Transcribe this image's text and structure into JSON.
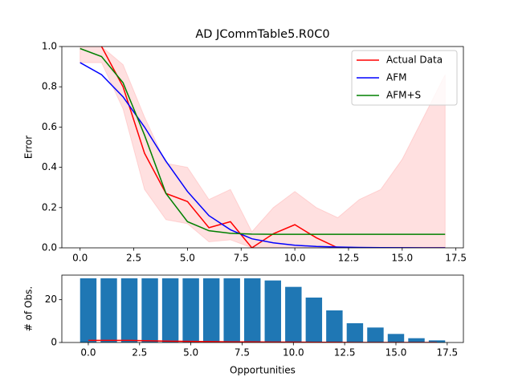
{
  "chart_data": [
    {
      "type": "line",
      "title": "AD JCommTable5.R0C0",
      "ylabel": "Error",
      "x": [
        0,
        1,
        2,
        3,
        4,
        5,
        6,
        7,
        8,
        9,
        10,
        11,
        12,
        13,
        14,
        15,
        16,
        17
      ],
      "series": [
        {
          "name": "Actual Data",
          "color": "#ff0000",
          "values": [
            1.1,
            1.0,
            0.8,
            0.47,
            0.27,
            0.23,
            0.1,
            0.13,
            0.0,
            0.07,
            0.115,
            0.05,
            0.0,
            0.0,
            0.0,
            0.0,
            0.0,
            0.0
          ]
        },
        {
          "name": "AFM",
          "color": "#0000ff",
          "values": [
            0.92,
            0.86,
            0.75,
            0.6,
            0.43,
            0.28,
            0.16,
            0.09,
            0.045,
            0.025,
            0.013,
            0.007,
            0.004,
            0.002,
            0.001,
            0.0005,
            0.0002,
            0.0001
          ]
        },
        {
          "name": "AFM+S",
          "color": "#008000",
          "values": [
            0.99,
            0.95,
            0.82,
            0.56,
            0.27,
            0.13,
            0.085,
            0.072,
            0.068,
            0.067,
            0.067,
            0.067,
            0.067,
            0.067,
            0.067,
            0.067,
            0.067,
            0.067
          ]
        }
      ],
      "band": {
        "color": "#ff0000",
        "upper": [
          1.0,
          1.0,
          0.91,
          0.65,
          0.42,
          0.4,
          0.24,
          0.29,
          0.08,
          0.2,
          0.28,
          0.2,
          0.15,
          0.24,
          0.29,
          0.44,
          0.65,
          0.86
        ],
        "lower": [
          0.92,
          0.92,
          0.69,
          0.29,
          0.14,
          0.12,
          0.03,
          0.04,
          0.0,
          0.0,
          0.0,
          0.0,
          0.0,
          0.0,
          0.0,
          0.0,
          0.0,
          0.0
        ]
      },
      "xlim": [
        -0.85,
        17.85
      ],
      "ylim": [
        0,
        1
      ],
      "xticks": [
        {
          "value": 0,
          "label": "0.0"
        },
        {
          "value": 2.5,
          "label": "2.5"
        },
        {
          "value": 5,
          "label": "5.0"
        },
        {
          "value": 7.5,
          "label": "7.5"
        },
        {
          "value": 10,
          "label": "10.0"
        },
        {
          "value": 12.5,
          "label": "12.5"
        },
        {
          "value": 15,
          "label": "15.0"
        },
        {
          "value": 17.5,
          "label": "17.5"
        }
      ],
      "yticks": [
        {
          "value": 0,
          "label": "0.0"
        },
        {
          "value": 0.2,
          "label": "0.2"
        },
        {
          "value": 0.4,
          "label": "0.4"
        },
        {
          "value": 0.6,
          "label": "0.6"
        },
        {
          "value": 0.8,
          "label": "0.8"
        },
        {
          "value": 1,
          "label": "1.0"
        }
      ],
      "legend": "upper right"
    },
    {
      "type": "bar",
      "xlabel": "Opportunities",
      "ylabel": "# of Obs.",
      "x": [
        0,
        1,
        2,
        3,
        4,
        5,
        6,
        7,
        8,
        9,
        10,
        11,
        12,
        13,
        14,
        15,
        16,
        17
      ],
      "values": [
        30,
        30,
        30,
        30,
        30,
        30,
        30,
        30,
        30,
        29,
        26,
        21,
        15,
        9,
        7,
        4,
        2,
        1
      ],
      "color": "#1f77b4",
      "overlay_line": {
        "color": "#ff0000",
        "values": [
          1,
          1,
          1,
          0.8,
          0.6,
          0.5,
          0.4,
          0.3,
          0.3,
          0.2,
          0.2,
          0.1,
          0.1,
          0,
          0,
          0,
          0,
          0
        ]
      },
      "xlim": [
        -1.29,
        18.29
      ],
      "ylim": [
        0,
        31.5
      ],
      "xticks": [
        {
          "value": 0,
          "label": "0.0"
        },
        {
          "value": 2.5,
          "label": "2.5"
        },
        {
          "value": 5,
          "label": "5.0"
        },
        {
          "value": 7.5,
          "label": "7.5"
        },
        {
          "value": 10,
          "label": "10.0"
        },
        {
          "value": 12.5,
          "label": "12.5"
        },
        {
          "value": 15,
          "label": "15.0"
        },
        {
          "value": 17.5,
          "label": "17.5"
        }
      ],
      "yticks": [
        0,
        20
      ]
    }
  ]
}
